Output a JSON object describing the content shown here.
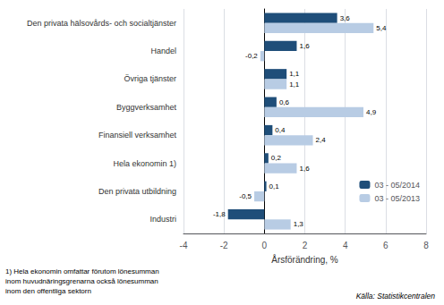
{
  "chart_data": {
    "type": "bar",
    "orientation": "horizontal",
    "categories": [
      "Industri",
      "Den privata utbildning",
      "Hela ekonomin 1)",
      "Finansiell verksamhet",
      "Byggverksamhet",
      "Övriga tjänster",
      "Handel",
      "Den privata hälsovårds- och socialtjänster"
    ],
    "series": [
      {
        "name": "03 - 05/2014",
        "color": "#1f4e79",
        "values": [
          -1.8,
          0.1,
          0.2,
          0.4,
          0.6,
          1.1,
          1.6,
          3.6
        ],
        "value_labels": [
          "-1,8",
          "0,1",
          "0,2",
          "0,4",
          "0,6",
          "1,1",
          "1,6",
          "3,6"
        ]
      },
      {
        "name": "03 - 05/2013",
        "color": "#b8cce4",
        "values": [
          1.3,
          -0.5,
          1.6,
          2.4,
          4.9,
          1.1,
          -0.2,
          5.4
        ],
        "value_labels": [
          "1,3",
          "-0,5",
          "1,6",
          "2,4",
          "4,9",
          "1,1",
          "-0,2",
          "5,4"
        ]
      }
    ],
    "xlabel": "Årsförändring, %",
    "xlim": [
      -4,
      8
    ],
    "xticks": [
      -4,
      -2,
      0,
      2,
      4,
      6,
      8
    ],
    "grid": true,
    "legend": "lower right",
    "data_labels": true,
    "annotations": [
      "1) Hela ekonomin omfattar förutom lönesumman",
      "inom huvudnäringsgrenarna också lönesumman",
      "inom den offentliga sektorn",
      "Källa: Statistikcentralen"
    ]
  }
}
